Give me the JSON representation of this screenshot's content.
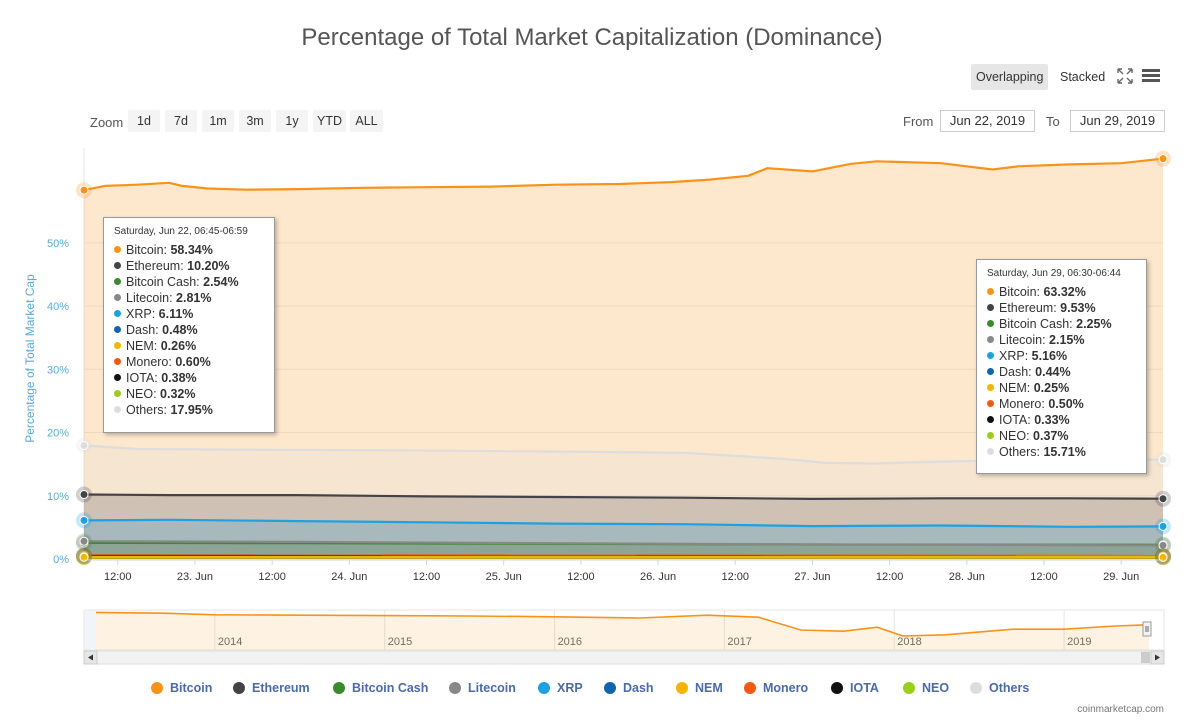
{
  "title": "Percentage of Total Market Capitalization (Dominance)",
  "toolbar": {
    "overlapping": "Overlapping",
    "stacked": "Stacked",
    "fullscreen_icon": "expand-icon",
    "menu_icon": "hamburger-menu-icon"
  },
  "zoom": {
    "label": "Zoom",
    "buttons": [
      "1d",
      "7d",
      "1m",
      "3m",
      "1y",
      "YTD",
      "ALL"
    ]
  },
  "range": {
    "from_label": "From",
    "from": "Jun 22, 2019",
    "to_label": "To",
    "to": "Jun 29, 2019"
  },
  "chart_data": {
    "type": "area",
    "ylabel": "Percentage of Total Market Cap",
    "ylim": [
      0,
      65
    ],
    "y_ticks": [
      "0%",
      "10%",
      "20%",
      "30%",
      "40%",
      "50%"
    ],
    "x_ticks": [
      "12:00",
      "23. Jun",
      "12:00",
      "24. Jun",
      "12:00",
      "25. Jun",
      "12:00",
      "26. Jun",
      "12:00",
      "27. Jun",
      "12:00",
      "28. Jun",
      "12:00",
      "29. Jun"
    ],
    "x_tick_hours": [
      12,
      24,
      36,
      48,
      60,
      72,
      84,
      96,
      108,
      120,
      132,
      144,
      156,
      168
    ],
    "x_range_hours": [
      6.75,
      174.5
    ],
    "series": [
      {
        "name": "Bitcoin",
        "color": "#f7931a",
        "points": [
          [
            6.75,
            58.34
          ],
          [
            10,
            59.0
          ],
          [
            15,
            59.2
          ],
          [
            20,
            59.5
          ],
          [
            22,
            59.0
          ],
          [
            26,
            58.6
          ],
          [
            32,
            58.4
          ],
          [
            40,
            58.5
          ],
          [
            50,
            58.7
          ],
          [
            60,
            58.8
          ],
          [
            70,
            58.9
          ],
          [
            80,
            59.2
          ],
          [
            90,
            59.3
          ],
          [
            98,
            59.6
          ],
          [
            104,
            60.0
          ],
          [
            110,
            60.6
          ],
          [
            113,
            61.8
          ],
          [
            120,
            61.3
          ],
          [
            126,
            62.5
          ],
          [
            130,
            62.9
          ],
          [
            140,
            62.6
          ],
          [
            148,
            61.6
          ],
          [
            152,
            62.1
          ],
          [
            160,
            62.4
          ],
          [
            168,
            62.6
          ],
          [
            174.5,
            63.32
          ]
        ]
      },
      {
        "name": "Others",
        "color": "#dddddd",
        "points": [
          [
            6.75,
            17.95
          ],
          [
            15,
            17.4
          ],
          [
            30,
            17.3
          ],
          [
            50,
            17.2
          ],
          [
            80,
            17.0
          ],
          [
            100,
            16.8
          ],
          [
            110,
            16.2
          ],
          [
            116,
            15.8
          ],
          [
            122,
            15.2
          ],
          [
            130,
            15.1
          ],
          [
            140,
            15.4
          ],
          [
            150,
            15.6
          ],
          [
            160,
            15.7
          ],
          [
            174.5,
            15.71
          ]
        ]
      },
      {
        "name": "Ethereum",
        "color": "#434348",
        "points": [
          [
            6.75,
            10.2
          ],
          [
            20,
            10.1
          ],
          [
            40,
            10.1
          ],
          [
            60,
            9.9
          ],
          [
            80,
            9.8
          ],
          [
            100,
            9.7
          ],
          [
            120,
            9.5
          ],
          [
            140,
            9.6
          ],
          [
            160,
            9.6
          ],
          [
            174.5,
            9.53
          ]
        ]
      },
      {
        "name": "XRP",
        "color": "#1da1e0",
        "points": [
          [
            6.75,
            6.11
          ],
          [
            20,
            6.2
          ],
          [
            40,
            6.0
          ],
          [
            60,
            5.8
          ],
          [
            80,
            5.6
          ],
          [
            100,
            5.5
          ],
          [
            120,
            5.2
          ],
          [
            140,
            5.3
          ],
          [
            160,
            5.1
          ],
          [
            174.5,
            5.16
          ]
        ]
      },
      {
        "name": "Bitcoin Cash",
        "color": "#3a8a2e",
        "points": [
          [
            6.75,
            2.54
          ],
          [
            40,
            2.5
          ],
          [
            80,
            2.4
          ],
          [
            120,
            2.3
          ],
          [
            174.5,
            2.25
          ]
        ]
      },
      {
        "name": "Litecoin",
        "color": "#888888",
        "points": [
          [
            6.75,
            2.81
          ],
          [
            40,
            2.7
          ],
          [
            80,
            2.5
          ],
          [
            120,
            2.3
          ],
          [
            174.5,
            2.15
          ]
        ]
      },
      {
        "name": "Monero",
        "color": "#f05a12",
        "points": [
          [
            6.75,
            0.6
          ],
          [
            174.5,
            0.5
          ]
        ]
      },
      {
        "name": "Dash",
        "color": "#1065ad",
        "points": [
          [
            6.75,
            0.48
          ],
          [
            174.5,
            0.44
          ]
        ]
      },
      {
        "name": "IOTA",
        "color": "#111111",
        "points": [
          [
            6.75,
            0.38
          ],
          [
            174.5,
            0.33
          ]
        ]
      },
      {
        "name": "NEO",
        "color": "#9acd1c",
        "points": [
          [
            6.75,
            0.32
          ],
          [
            174.5,
            0.37
          ]
        ]
      },
      {
        "name": "NEM",
        "color": "#f4b400",
        "points": [
          [
            6.75,
            0.26
          ],
          [
            174.5,
            0.25
          ]
        ]
      }
    ],
    "navigator": {
      "x_labels": [
        "2014",
        "2015",
        "2016",
        "2017",
        "2018",
        "2019"
      ],
      "x_label_years": [
        2014,
        2015,
        2016,
        2017,
        2018,
        2019
      ],
      "x_range_years": [
        2013.3,
        2019.5
      ],
      "bitcoin": [
        [
          2013.3,
          94
        ],
        [
          2013.7,
          92
        ],
        [
          2014.0,
          88
        ],
        [
          2014.5,
          87
        ],
        [
          2015.0,
          86
        ],
        [
          2015.5,
          85
        ],
        [
          2016.0,
          83
        ],
        [
          2016.5,
          80
        ],
        [
          2016.9,
          87
        ],
        [
          2017.2,
          82
        ],
        [
          2017.45,
          50
        ],
        [
          2017.7,
          47
        ],
        [
          2017.9,
          57
        ],
        [
          2018.05,
          35
        ],
        [
          2018.3,
          38
        ],
        [
          2018.7,
          52
        ],
        [
          2019.0,
          52
        ],
        [
          2019.3,
          60
        ],
        [
          2019.5,
          63
        ]
      ]
    }
  },
  "tooltips": [
    {
      "header": "Saturday, Jun 22, 06:45-06:59",
      "rows": [
        {
          "name": "Bitcoin",
          "value": "58.34%",
          "color": "#f7931a"
        },
        {
          "name": "Ethereum",
          "value": "10.20%",
          "color": "#434348"
        },
        {
          "name": "Bitcoin Cash",
          "value": "2.54%",
          "color": "#3a8a2e"
        },
        {
          "name": "Litecoin",
          "value": "2.81%",
          "color": "#888888"
        },
        {
          "name": "XRP",
          "value": "6.11%",
          "color": "#1da1e0"
        },
        {
          "name": "Dash",
          "value": "0.48%",
          "color": "#1065ad"
        },
        {
          "name": "NEM",
          "value": "0.26%",
          "color": "#f4b400"
        },
        {
          "name": "Monero",
          "value": "0.60%",
          "color": "#f05a12"
        },
        {
          "name": "IOTA",
          "value": "0.38%",
          "color": "#111111"
        },
        {
          "name": "NEO",
          "value": "0.32%",
          "color": "#9acd1c"
        },
        {
          "name": "Others",
          "value": "17.95%",
          "color": "#dddddd"
        }
      ]
    },
    {
      "header": "Saturday, Jun 29, 06:30-06:44",
      "rows": [
        {
          "name": "Bitcoin",
          "value": "63.32%",
          "color": "#f7931a"
        },
        {
          "name": "Ethereum",
          "value": "9.53%",
          "color": "#434348"
        },
        {
          "name": "Bitcoin Cash",
          "value": "2.25%",
          "color": "#3a8a2e"
        },
        {
          "name": "Litecoin",
          "value": "2.15%",
          "color": "#888888"
        },
        {
          "name": "XRP",
          "value": "5.16%",
          "color": "#1da1e0"
        },
        {
          "name": "Dash",
          "value": "0.44%",
          "color": "#1065ad"
        },
        {
          "name": "NEM",
          "value": "0.25%",
          "color": "#f4b400"
        },
        {
          "name": "Monero",
          "value": "0.50%",
          "color": "#f05a12"
        },
        {
          "name": "IOTA",
          "value": "0.33%",
          "color": "#111111"
        },
        {
          "name": "NEO",
          "value": "0.37%",
          "color": "#9acd1c"
        },
        {
          "name": "Others",
          "value": "15.71%",
          "color": "#dddddd"
        }
      ]
    }
  ],
  "legend": [
    {
      "name": "Bitcoin",
      "color": "#f7931a"
    },
    {
      "name": "Ethereum",
      "color": "#434348"
    },
    {
      "name": "Bitcoin Cash",
      "color": "#3a8a2e"
    },
    {
      "name": "Litecoin",
      "color": "#888888"
    },
    {
      "name": "XRP",
      "color": "#1da1e0"
    },
    {
      "name": "Dash",
      "color": "#1065ad"
    },
    {
      "name": "NEM",
      "color": "#f4b400"
    },
    {
      "name": "Monero",
      "color": "#f05a12"
    },
    {
      "name": "IOTA",
      "color": "#111111"
    },
    {
      "name": "NEO",
      "color": "#9acd1c"
    },
    {
      "name": "Others",
      "color": "#dddddd"
    }
  ],
  "credit": "coinmarketcap.com"
}
